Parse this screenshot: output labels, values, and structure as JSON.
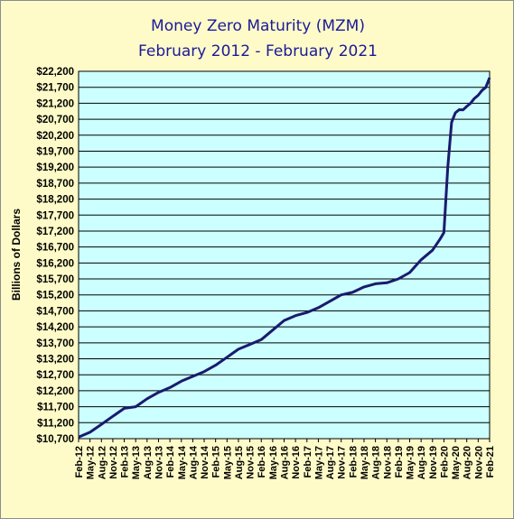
{
  "chart_data": {
    "type": "line",
    "title": "Money  Zero Maturity  (MZM)",
    "subtitle": "February 2012 - February 2021",
    "xlabel": "",
    "ylabel": "Billions  of Dollars",
    "ylim": [
      10700,
      22200
    ],
    "y_ticks": [
      "$10,700",
      "$11,200",
      "$11,700",
      "$12,200",
      "$12,700",
      "$13,200",
      "$13,700",
      "$14,200",
      "$14,700",
      "$15,200",
      "$15,700",
      "$16,200",
      "$16,700",
      "$17,200",
      "$17,700",
      "$18,200",
      "$18,700",
      "$19,200",
      "$19,700",
      "$20,200",
      "$20,700",
      "$21,200",
      "$21,700",
      "$22,200"
    ],
    "x_ticks": [
      "Feb-12",
      "May-12",
      "Aug-12",
      "Nov-12",
      "Feb-13",
      "May-13",
      "Aug-13",
      "Nov-13",
      "Feb-14",
      "May-14",
      "Aug-14",
      "Nov-14",
      "Feb-15",
      "May-15",
      "Aug-15",
      "Nov-15",
      "Feb-16",
      "May-16",
      "Aug-16",
      "Nov-16",
      "Feb-17",
      "May-17",
      "Aug-17",
      "Nov-17",
      "Feb-18",
      "May-18",
      "Aug-18",
      "Nov-18",
      "Feb-19",
      "May-19",
      "Aug-19",
      "Nov-19",
      "Feb-20",
      "May-20",
      "Aug-20",
      "Nov-20",
      "Feb-21"
    ],
    "grid": true,
    "series": [
      {
        "x": [
          "Feb-12",
          "May-12",
          "Aug-12",
          "Nov-12",
          "Feb-13",
          "May-13",
          "Aug-13",
          "Nov-13",
          "Feb-14",
          "May-14",
          "Aug-14",
          "Nov-14",
          "Feb-15",
          "May-15",
          "Aug-15",
          "Nov-15",
          "Feb-16",
          "May-16",
          "Aug-16",
          "Nov-16",
          "Feb-17",
          "May-17",
          "Aug-17",
          "Nov-17",
          "Feb-18",
          "May-18",
          "Aug-18",
          "Nov-18",
          "Feb-19",
          "May-19",
          "Aug-19",
          "Nov-19",
          "Jan-20",
          "Feb-20",
          "Mar-20",
          "Apr-20",
          "May-20",
          "Jun-20",
          "Jul-20",
          "Aug-20",
          "Sep-20",
          "Oct-20",
          "Nov-20",
          "Dec-20",
          "Jan-21",
          "Feb-21"
        ],
        "values": [
          10750,
          10900,
          11150,
          11400,
          11650,
          11700,
          11950,
          12150,
          12300,
          12500,
          12650,
          12800,
          13000,
          13250,
          13500,
          13650,
          13800,
          14100,
          14400,
          14550,
          14650,
          14800,
          15000,
          15200,
          15280,
          15450,
          15550,
          15580,
          15700,
          15900,
          16300,
          16600,
          16950,
          17150,
          19200,
          20600,
          20900,
          21000,
          20990,
          21100,
          21200,
          21350,
          21450,
          21600,
          21700,
          22000
        ]
      }
    ],
    "line_color": "#1a1a6e",
    "plot_bg": "#ccffff",
    "page_bg": "#fffbc8"
  }
}
